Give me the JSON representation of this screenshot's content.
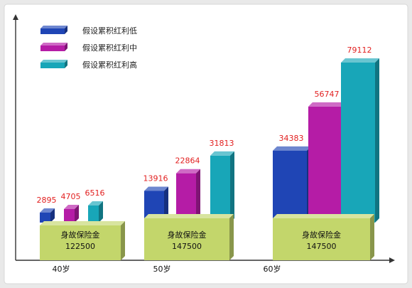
{
  "chart_data": {
    "type": "bar",
    "categories": [
      "40岁",
      "50岁",
      "60岁"
    ],
    "base": {
      "label": "身故保险金",
      "values": [
        122500,
        147500,
        147500
      ],
      "color": "#c3d66b"
    },
    "series": [
      {
        "name": "假设累积红利低",
        "values": [
          2895,
          13916,
          34383
        ],
        "color": "#1f45b5"
      },
      {
        "name": "假设累积红利中",
        "values": [
          4705,
          22864,
          56747
        ],
        "color": "#b51ca6"
      },
      {
        "name": "假设累积红利高",
        "values": [
          6516,
          31813,
          79112
        ],
        "color": "#18a6b8"
      }
    ],
    "value_label_color": "#e21f1f",
    "legend_position": "top-left",
    "grid": false
  }
}
